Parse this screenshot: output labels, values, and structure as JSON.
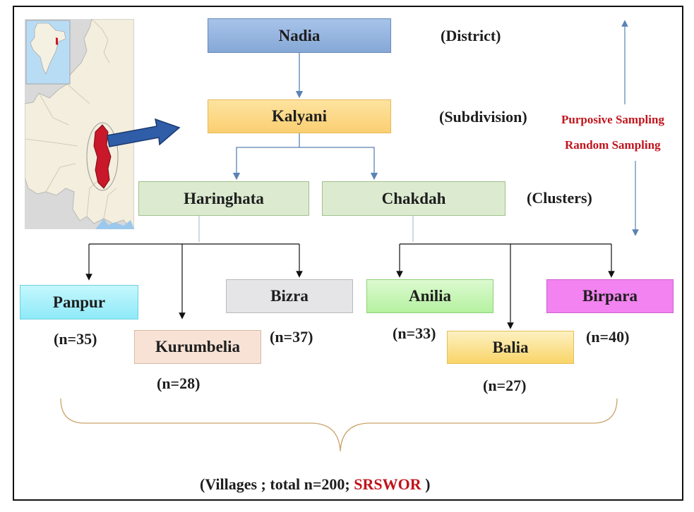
{
  "levels": {
    "district": {
      "name": "Nadia",
      "label": "(District)"
    },
    "subdivision": {
      "name": "Kalyani",
      "label": "(Subdivision)"
    },
    "clusters_label": "(Clusters)",
    "clusters": [
      "Haringhata",
      "Chakdah"
    ]
  },
  "sampling": {
    "purposive": "Purposive Sampling",
    "random": "Random Sampling"
  },
  "villages": [
    {
      "name": "Panpur",
      "n": "(n=35)"
    },
    {
      "name": "Kurumbelia",
      "n": "(n=28)"
    },
    {
      "name": "Bizra",
      "n": "(n=37)"
    },
    {
      "name": "Anilia",
      "n": "(n=33)"
    },
    {
      "name": "Balia",
      "n": "(n=27)"
    },
    {
      "name": "Birpara",
      "n": "(n=40)"
    }
  ],
  "footer": {
    "prefix": "(Villages ; total n=200; ",
    "method": "SRSWOR",
    "suffix": " )"
  },
  "colors": {
    "nadia": "#92b4e0",
    "kalyani": "#fbd687",
    "cluster": "#dcebd0",
    "panpur": "#a8f0fb",
    "kurumbelia": "#f8e2d6",
    "bizra": "#e5e5e8",
    "anilia": "#c8f5b8",
    "balia": "#fbe08a",
    "birpara": "#f283f0",
    "accent_red": "#c0141c"
  }
}
